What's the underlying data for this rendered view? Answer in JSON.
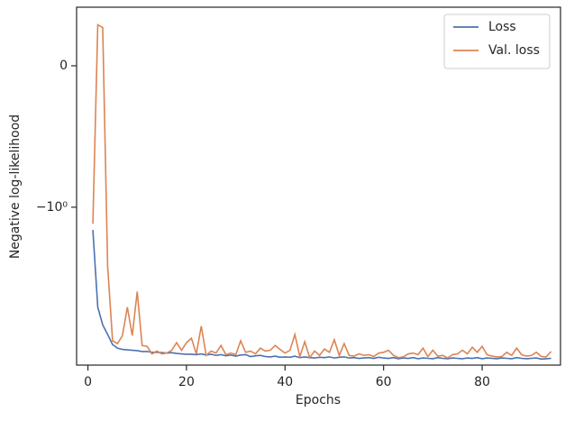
{
  "chart_data": {
    "type": "line",
    "x_label": "Epochs",
    "y_label": "Negative log-likelihood",
    "x": [
      1,
      2,
      3,
      4,
      5,
      6,
      7,
      8,
      9,
      10,
      11,
      12,
      13,
      14,
      15,
      16,
      17,
      18,
      19,
      20,
      21,
      22,
      23,
      24,
      25,
      26,
      27,
      28,
      29,
      30,
      31,
      32,
      33,
      34,
      35,
      36,
      37,
      38,
      39,
      40,
      41,
      42,
      43,
      44,
      45,
      46,
      47,
      48,
      49,
      50,
      51,
      52,
      53,
      54,
      55,
      56,
      57,
      58,
      59,
      60,
      61,
      62,
      63,
      64,
      65,
      66,
      67,
      68,
      69,
      70,
      71,
      72,
      73,
      74,
      75,
      76,
      77,
      78,
      79,
      80,
      81,
      82,
      83,
      84,
      85,
      86,
      87,
      88,
      89,
      90,
      91,
      92,
      93,
      94
    ],
    "series": [
      {
        "name": "Loss",
        "color": "#4c72b0",
        "values": [
          -1.51,
          -6.1,
          -8.4,
          -10,
          -12,
          -12.8,
          -13.1,
          -13.2,
          -13.3,
          -13.4,
          -13.6,
          -13.6,
          -13.8,
          -13.8,
          -13.9,
          -14,
          -13.9,
          -14.1,
          -14.2,
          -14.3,
          -14.3,
          -14.4,
          -14.2,
          -14.5,
          -14.3,
          -14.6,
          -14.4,
          -14.7,
          -14.5,
          -14.8,
          -14.5,
          -14.4,
          -14.9,
          -14.7,
          -14.6,
          -14.9,
          -15,
          -14.8,
          -15.1,
          -15,
          -15.1,
          -14.8,
          -15.2,
          -15,
          -15.2,
          -15.3,
          -15.1,
          -15.2,
          -15,
          -15.3,
          -15.1,
          -15,
          -15.3,
          -15.2,
          -15.4,
          -15.3,
          -15.2,
          -15.4,
          -15.1,
          -15.3,
          -15.4,
          -15.2,
          -15.5,
          -15.3,
          -15.4,
          -15.2,
          -15.5,
          -15.3,
          -15.4,
          -15.5,
          -15.2,
          -15.4,
          -15.5,
          -15.3,
          -15.4,
          -15.5,
          -15.3,
          -15.4,
          -15.2,
          -15.5,
          -15.3,
          -15.4,
          -15.5,
          -15.3,
          -15.4,
          -15.5,
          -15.2,
          -15.4,
          -15.5,
          -15.4,
          -15.3,
          -15.6,
          -15.5,
          -15.4
        ]
      },
      {
        "name": "Val. loss",
        "color": "#dd8452",
        "values": [
          -1.35,
          0.29,
          0.27,
          -2.9,
          -11.2,
          -11.8,
          -10.2,
          -6.1,
          -10.2,
          -4.6,
          -12.2,
          -12.4,
          -14.2,
          -13.5,
          -14.2,
          -14,
          -13.3,
          -11.6,
          -13.3,
          -11.6,
          -10.7,
          -14.2,
          -8.6,
          -14.6,
          -13.5,
          -14,
          -12.2,
          -14.4,
          -14,
          -14.4,
          -11.2,
          -13.8,
          -13.5,
          -14.2,
          -12.8,
          -13.5,
          -13.3,
          -12.2,
          -13.1,
          -14,
          -13.3,
          -10,
          -14.9,
          -11.4,
          -15.2,
          -13.5,
          -14.6,
          -13,
          -13.8,
          -11,
          -14.6,
          -11.8,
          -14.6,
          -14.8,
          -14.2,
          -14.6,
          -14.4,
          -14.9,
          -14,
          -13.8,
          -13.3,
          -14.6,
          -15.2,
          -15,
          -14.2,
          -14,
          -14.4,
          -12.8,
          -14.9,
          -13.3,
          -14.8,
          -14.6,
          -15.3,
          -14.4,
          -14.2,
          -13.3,
          -14.2,
          -12.6,
          -13.8,
          -12.4,
          -14.4,
          -14.8,
          -15,
          -14.9,
          -13.8,
          -14.6,
          -12.8,
          -14.4,
          -14.8,
          -14.6,
          -13.8,
          -14.9,
          -15,
          -13.6
        ]
      }
    ],
    "xlim": [
      -2.3,
      95.9
    ],
    "xticks": [
      0,
      20,
      40,
      60,
      80
    ],
    "ylim": [
      -17.4,
      0.414
    ],
    "yticks": [
      0,
      {
        "value": -1,
        "label": "−10⁰"
      }
    ],
    "y_scale": "symlog",
    "legend": "upper right"
  }
}
